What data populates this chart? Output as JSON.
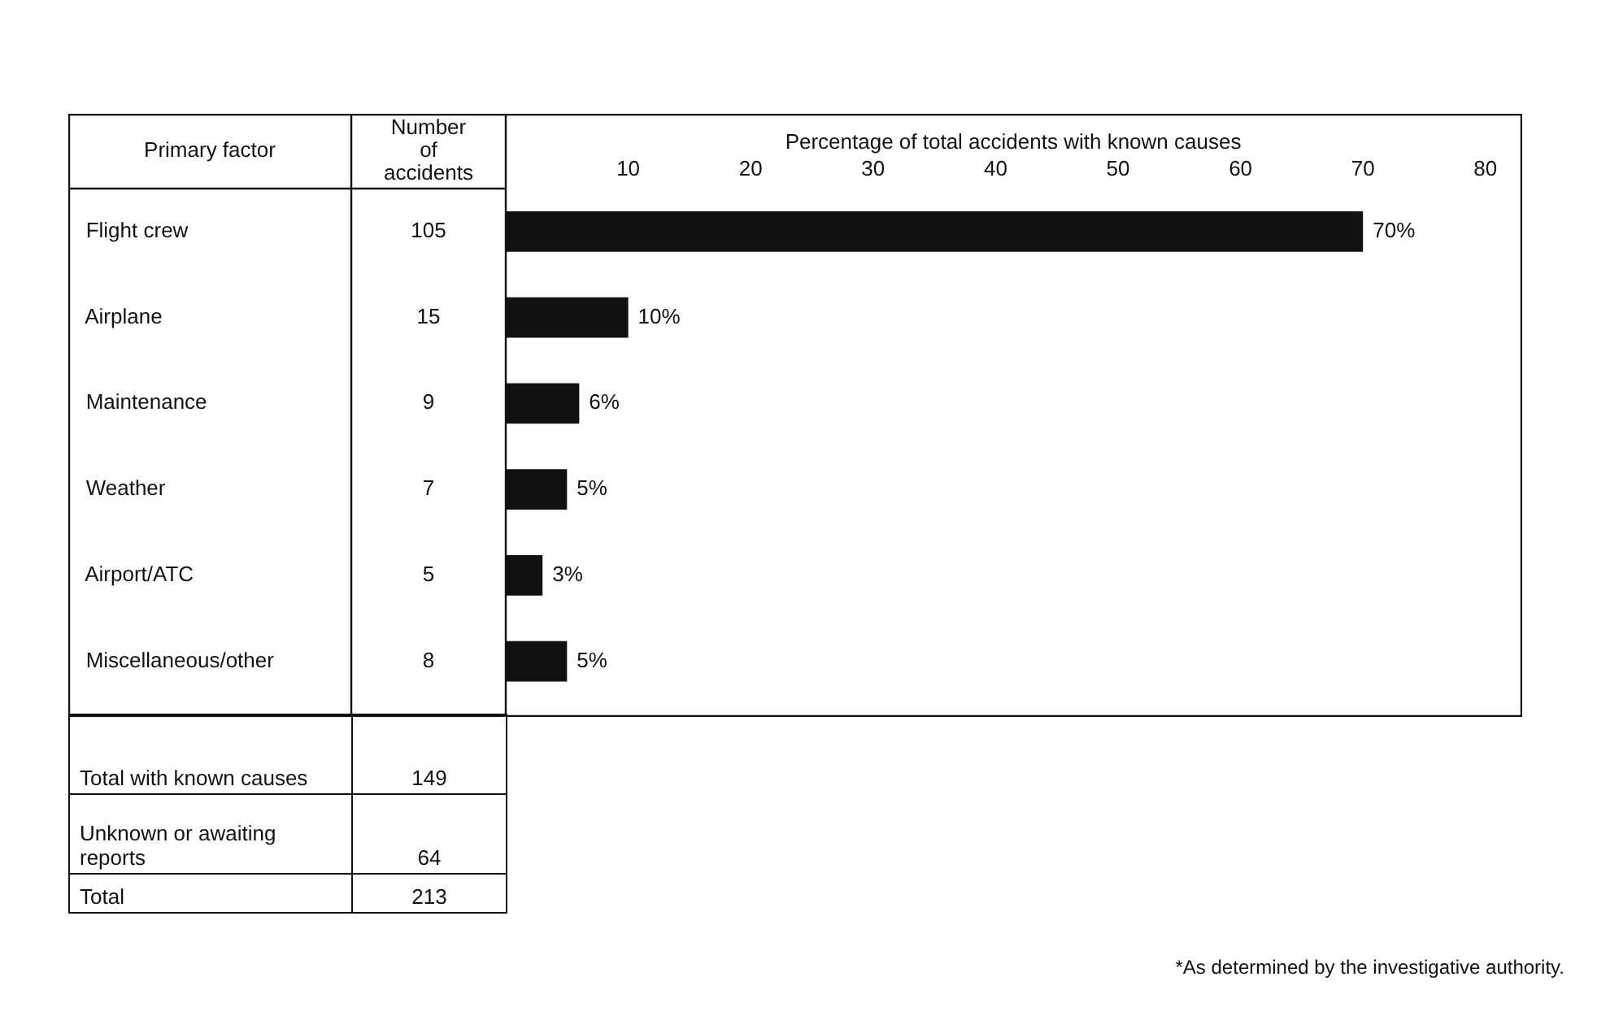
{
  "chart_data": {
    "type": "bar",
    "orientation": "horizontal",
    "xlabel": "Percentage of total accidents with known causes",
    "ylabel": "Primary factor",
    "y2label": "Number of accidents",
    "categories": [
      "Flight crew",
      "Airplane",
      "Maintenance",
      "Weather",
      "Airport/ATC",
      "Miscellaneous/other"
    ],
    "values": [
      70,
      10,
      6,
      5,
      3,
      5
    ],
    "color": "#111111",
    "value_labels": [
      "70%",
      "10%",
      "6%",
      "5%",
      "3%",
      "5%"
    ],
    "x2lim": [
      0,
      83
    ],
    "x2ticks": [
      10,
      20,
      30,
      40,
      50,
      60,
      70,
      80
    ],
    "grid": false,
    "legend": false,
    "annotations": [
      "105",
      "15",
      "9",
      "7",
      "5",
      "8",
      "Total with known causes",
      "149",
      "Unknown or awaiting reports",
      "64",
      "Total",
      "213",
      "*As determined by the investigative authority."
    ]
  }
}
